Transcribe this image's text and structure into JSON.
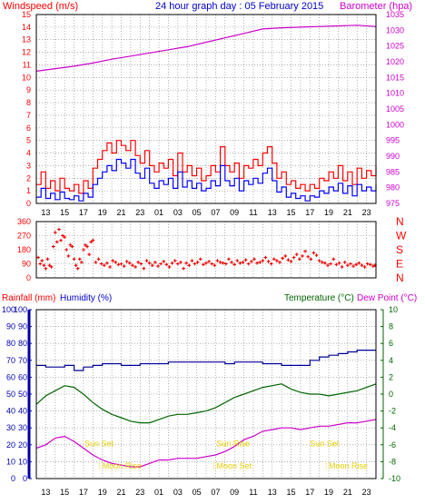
{
  "header": {
    "wind_label": "Windspeed (m/s)",
    "title": "24 hour graph day : 05 February 2015",
    "baro_label": "Barometer (hpa)"
  },
  "lower_header": {
    "rain_label": "Rainfall (mm)",
    "humidity_label": "Humidity (%)",
    "temp_label": "Temperature (°C)",
    "dew_label": "Dew Point (°C)"
  },
  "x_hour_labels": [
    "13",
    "15",
    "17",
    "19",
    "21",
    "23",
    "01",
    "03",
    "05",
    "07",
    "09",
    "11",
    "13",
    "15",
    "17",
    "19",
    "21",
    "23"
  ],
  "colors": {
    "wind_gust": "#ff0000",
    "wind_avg": "#0000ff",
    "barometer": "#cc00cc",
    "direction": "#ee0000",
    "humidity": "#000099",
    "temperature": "#006600",
    "dewpoint": "#cc00cc",
    "grid": "#808080",
    "event": "#e8d000"
  },
  "chart_data": [
    {
      "type": "line",
      "name": "wind-barometer",
      "x_unit": "hours since 12:00",
      "y_left_label": "Windspeed (m/s)",
      "y_left_range": [
        0,
        15
      ],
      "y_left_ticks": [
        "0",
        "1",
        "2",
        "3",
        "4",
        "5",
        "6",
        "7",
        "8",
        "9",
        "10",
        "11",
        "12",
        "13",
        "14",
        "15"
      ],
      "y_right_label": "Barometer (hpa)",
      "y_right_range": [
        975,
        1035
      ],
      "y_right_ticks": [
        "975",
        "980",
        "985",
        "990",
        "995",
        "1000",
        "1005",
        "1010",
        "1015",
        "1020",
        "1025",
        "1030",
        "1035"
      ],
      "series": [
        {
          "name": "Gust",
          "axis": "left",
          "x": [
            0,
            0.5,
            1,
            1.5,
            2,
            2.5,
            3,
            3.5,
            4,
            4.5,
            5,
            5.5,
            6,
            6.5,
            7,
            7.5,
            8,
            8.5,
            9,
            9.5,
            10,
            10.5,
            11,
            11.5,
            12,
            12.5,
            13,
            13.5,
            14,
            14.5,
            15,
            15.5,
            16,
            16.5,
            17,
            17.5,
            18,
            18.5,
            19,
            19.5,
            20,
            20.5,
            21,
            21.5,
            22,
            22.5,
            23,
            23.5,
            24,
            24.5,
            25,
            25.5,
            26,
            26.5,
            27,
            27.5,
            28,
            28.5,
            29,
            29.5,
            30,
            30.5,
            31,
            31.5,
            32,
            32.5,
            33,
            33.5,
            34,
            34.5,
            35,
            35.5,
            36
          ],
          "values": [
            1.5,
            2.5,
            1.2,
            1.8,
            1.0,
            2.0,
            1.2,
            1.0,
            1.5,
            0.8,
            1.8,
            1.2,
            2.8,
            3.5,
            4.2,
            4.8,
            4.0,
            5.0,
            4.6,
            4.2,
            5.0,
            3.8,
            3.2,
            4.2,
            3.0,
            2.5,
            3.2,
            2.8,
            3.5,
            2.2,
            4.0,
            2.5,
            3.0,
            2.2,
            2.8,
            1.8,
            2.2,
            3.0,
            2.5,
            4.5,
            3.0,
            2.5,
            3.2,
            2.0,
            3.0,
            2.8,
            3.5,
            3.0,
            4.0,
            4.5,
            3.2,
            2.0,
            2.5,
            1.5,
            1.8,
            1.2,
            1.5,
            1.0,
            1.5,
            1.2,
            2.0,
            1.8,
            2.5,
            2.0,
            3.0,
            1.8,
            2.5,
            1.5,
            2.8,
            2.0,
            2.6,
            2.2,
            3.0
          ]
        },
        {
          "name": "Average",
          "axis": "left",
          "x": [
            0,
            0.5,
            1,
            1.5,
            2,
            2.5,
            3,
            3.5,
            4,
            4.5,
            5,
            5.5,
            6,
            6.5,
            7,
            7.5,
            8,
            8.5,
            9,
            9.5,
            10,
            10.5,
            11,
            11.5,
            12,
            12.5,
            13,
            13.5,
            14,
            14.5,
            15,
            15.5,
            16,
            16.5,
            17,
            17.5,
            18,
            18.5,
            19,
            19.5,
            20,
            20.5,
            21,
            21.5,
            22,
            22.5,
            23,
            23.5,
            24,
            24.5,
            25,
            25.5,
            26,
            26.5,
            27,
            27.5,
            28,
            28.5,
            29,
            29.5,
            30,
            30.5,
            31,
            31.5,
            32,
            32.5,
            33,
            33.5,
            34,
            34.5,
            35,
            35.5,
            36
          ],
          "values": [
            0.5,
            1.2,
            0.4,
            0.8,
            0.3,
            0.9,
            0.4,
            0.3,
            0.6,
            0.2,
            0.8,
            0.5,
            1.5,
            2.0,
            2.5,
            3.0,
            2.6,
            3.5,
            3.2,
            2.8,
            3.5,
            2.4,
            2.0,
            2.8,
            1.6,
            1.2,
            1.8,
            1.5,
            2.0,
            1.2,
            2.5,
            1.3,
            1.8,
            1.2,
            1.6,
            1.0,
            1.2,
            1.8,
            1.4,
            3.0,
            1.8,
            1.4,
            2.0,
            1.0,
            1.8,
            1.5,
            2.0,
            1.6,
            2.4,
            2.8,
            1.8,
            0.9,
            1.3,
            0.5,
            0.8,
            0.4,
            0.6,
            0.2,
            0.6,
            0.5,
            1.0,
            0.8,
            1.3,
            1.0,
            1.6,
            0.8,
            1.4,
            0.6,
            1.5,
            1.0,
            1.3,
            1.0,
            1.5
          ]
        },
        {
          "name": "Barometer",
          "axis": "right",
          "x": [
            0,
            2,
            4,
            6,
            8,
            10,
            12,
            14,
            16,
            18,
            20,
            22,
            24,
            26,
            28,
            30,
            32,
            34,
            36
          ],
          "values": [
            1017.0,
            1017.8,
            1018.6,
            1019.6,
            1020.8,
            1021.8,
            1022.8,
            1023.8,
            1024.8,
            1026.2,
            1027.6,
            1029.0,
            1030.4,
            1030.8,
            1031.0,
            1031.2,
            1031.4,
            1031.6,
            1031.2
          ]
        }
      ]
    },
    {
      "type": "scatter",
      "name": "wind-direction",
      "x_unit": "hours since 12:00",
      "y_left_ticks": [
        "0",
        "90",
        "180",
        "270",
        "360"
      ],
      "y_left_range": [
        0,
        360
      ],
      "y_right_ticks": [
        "N",
        "E",
        "S",
        "W",
        "N"
      ],
      "series": [
        {
          "name": "Wind direction",
          "x": [
            0.2,
            0.4,
            0.6,
            0.8,
            1.0,
            1.2,
            1.4,
            1.6,
            1.8,
            2.0,
            2.2,
            2.4,
            2.6,
            2.8,
            3.0,
            3.2,
            3.4,
            3.6,
            3.8,
            4.0,
            4.2,
            4.4,
            4.6,
            4.8,
            5.0,
            5.2,
            5.4,
            5.6,
            5.8,
            6.0,
            6.3,
            6.6,
            6.9,
            7.2,
            7.5,
            7.8,
            8.1,
            8.4,
            8.7,
            9.0,
            9.3,
            9.6,
            9.9,
            10.2,
            10.5,
            10.8,
            11.1,
            11.4,
            11.7,
            12.0,
            12.3,
            12.6,
            12.9,
            13.2,
            13.5,
            13.8,
            14.1,
            14.4,
            14.7,
            15.0,
            15.3,
            15.6,
            15.9,
            16.2,
            16.5,
            16.8,
            17.1,
            17.4,
            17.7,
            18.0,
            18.3,
            18.6,
            18.9,
            19.2,
            19.5,
            19.8,
            20.1,
            20.4,
            20.7,
            21.0,
            21.3,
            21.6,
            21.9,
            22.2,
            22.5,
            22.8,
            23.1,
            23.4,
            23.7,
            24.0,
            24.3,
            24.6,
            24.9,
            25.2,
            25.5,
            25.8,
            26.1,
            26.4,
            26.7,
            27.0,
            27.3,
            27.6,
            27.9,
            28.2,
            28.5,
            28.8,
            29.1,
            29.4,
            29.7,
            30.0,
            30.3,
            30.6,
            30.9,
            31.2,
            31.5,
            31.8,
            32.1,
            32.4,
            32.7,
            33.0,
            33.3,
            33.6,
            33.9,
            34.2,
            34.5,
            34.8,
            35.1,
            35.4,
            35.7,
            35.9
          ],
          "values": [
            130,
            90,
            110,
            80,
            60,
            120,
            80,
            70,
            200,
            290,
            230,
            310,
            240,
            270,
            260,
            180,
            140,
            210,
            200,
            120,
            80,
            60,
            120,
            100,
            180,
            210,
            200,
            150,
            230,
            240,
            100,
            120,
            90,
            80,
            95,
            70,
            110,
            100,
            85,
            90,
            75,
            105,
            95,
            80,
            70,
            100,
            90,
            60,
            110,
            95,
            80,
            100,
            75,
            90,
            105,
            85,
            70,
            95,
            110,
            90,
            100,
            60,
            95,
            80,
            110,
            90,
            100,
            120,
            85,
            95,
            105,
            90,
            80,
            110,
            100,
            95,
            90,
            120,
            100,
            85,
            110,
            95,
            100,
            115,
            90,
            105,
            120,
            95,
            100,
            110,
            130,
            105,
            90,
            120,
            110,
            100,
            125,
            140,
            115,
            105,
            130,
            150,
            120,
            140,
            170,
            135,
            120,
            160,
            145,
            110,
            100,
            95,
            80,
            90,
            120,
            85,
            95,
            70,
            100,
            80,
            90,
            75,
            85,
            95,
            80,
            70,
            90,
            85,
            75,
            80
          ]
        }
      ]
    },
    {
      "type": "line",
      "name": "humidity-temperature",
      "x_unit": "hours since 12:00",
      "y_left_label": "Rainfall (mm) / Humidity (%)",
      "y_left_range": [
        0,
        100
      ],
      "y_left_ticks": [
        "0",
        "10",
        "20",
        "30",
        "40",
        "50",
        "60",
        "70",
        "80",
        "90",
        "100"
      ],
      "y_right_label": "Temperature (°C) / Dew Point (°C)",
      "y_right_range": [
        -10,
        10
      ],
      "y_right_ticks": [
        "-10",
        "-8",
        "-6",
        "-4",
        "-2",
        "0",
        "2",
        "4",
        "6",
        "8",
        "10"
      ],
      "series": [
        {
          "name": "Humidity",
          "axis": "left",
          "x": [
            0,
            1,
            2,
            3,
            4,
            5,
            6,
            7,
            8,
            9,
            10,
            11,
            12,
            13,
            14,
            15,
            16,
            17,
            18,
            19,
            20,
            21,
            22,
            23,
            24,
            25,
            26,
            27,
            28,
            29,
            30,
            31,
            32,
            33,
            34,
            35,
            36
          ],
          "values": [
            67,
            66,
            66,
            67,
            64,
            66,
            67,
            68,
            68,
            67,
            67,
            68,
            68,
            68,
            69,
            69,
            69,
            69,
            69,
            69,
            68,
            69,
            69,
            69,
            68,
            68,
            67,
            67,
            67,
            70,
            72,
            73,
            74,
            75,
            76,
            76,
            76
          ],
          "note": "Humidity"
        },
        {
          "name": "Temperature",
          "axis": "right",
          "x": [
            0,
            1,
            2,
            3,
            4,
            5,
            6,
            7,
            8,
            9,
            10,
            11,
            12,
            13,
            14,
            15,
            16,
            17,
            18,
            19,
            20,
            21,
            22,
            23,
            24,
            25,
            26,
            27,
            28,
            29,
            30,
            31,
            32,
            33,
            34,
            35,
            36
          ],
          "values": [
            -1.2,
            -0.2,
            0.4,
            1.0,
            0.8,
            0.0,
            -1.0,
            -1.8,
            -2.4,
            -2.8,
            -3.2,
            -3.4,
            -3.4,
            -3.0,
            -2.6,
            -2.4,
            -2.4,
            -2.2,
            -2.0,
            -1.6,
            -1.0,
            -0.4,
            0.0,
            0.4,
            0.8,
            1.0,
            1.2,
            0.6,
            0.2,
            0.0,
            0.0,
            -0.2,
            0.0,
            0.2,
            0.4,
            0.8,
            1.2
          ]
        },
        {
          "name": "Dew Point",
          "axis": "right",
          "x": [
            0,
            1,
            2,
            3,
            4,
            5,
            6,
            7,
            8,
            9,
            10,
            11,
            12,
            13,
            14,
            15,
            16,
            17,
            18,
            19,
            20,
            21,
            22,
            23,
            24,
            25,
            26,
            27,
            28,
            29,
            30,
            31,
            32,
            33,
            34,
            35,
            36
          ],
          "values": [
            -6.4,
            -6.0,
            -5.2,
            -5.0,
            -5.6,
            -6.4,
            -7.2,
            -7.8,
            -8.2,
            -8.4,
            -8.6,
            -8.6,
            -8.2,
            -7.8,
            -7.8,
            -7.6,
            -7.6,
            -7.6,
            -7.4,
            -7.2,
            -6.8,
            -6.2,
            -5.4,
            -5.0,
            -4.4,
            -4.2,
            -4.0,
            -4.0,
            -4.2,
            -4.0,
            -3.8,
            -3.8,
            -3.6,
            -3.4,
            -3.4,
            -3.2,
            -3.0
          ]
        }
      ],
      "annotations": [
        {
          "text": "Sun Set",
          "x": 5.1,
          "y": 19
        },
        {
          "text": "Moon Rise",
          "x": 7.0,
          "y": 6
        },
        {
          "text": "Sun Rise",
          "x": 19.1,
          "y": 19
        },
        {
          "text": "Moon Set",
          "x": 19.1,
          "y": 6
        },
        {
          "text": "Sun Set",
          "x": 29.0,
          "y": 19
        },
        {
          "text": "Moon Rise",
          "x": 31.0,
          "y": 6
        }
      ]
    }
  ]
}
